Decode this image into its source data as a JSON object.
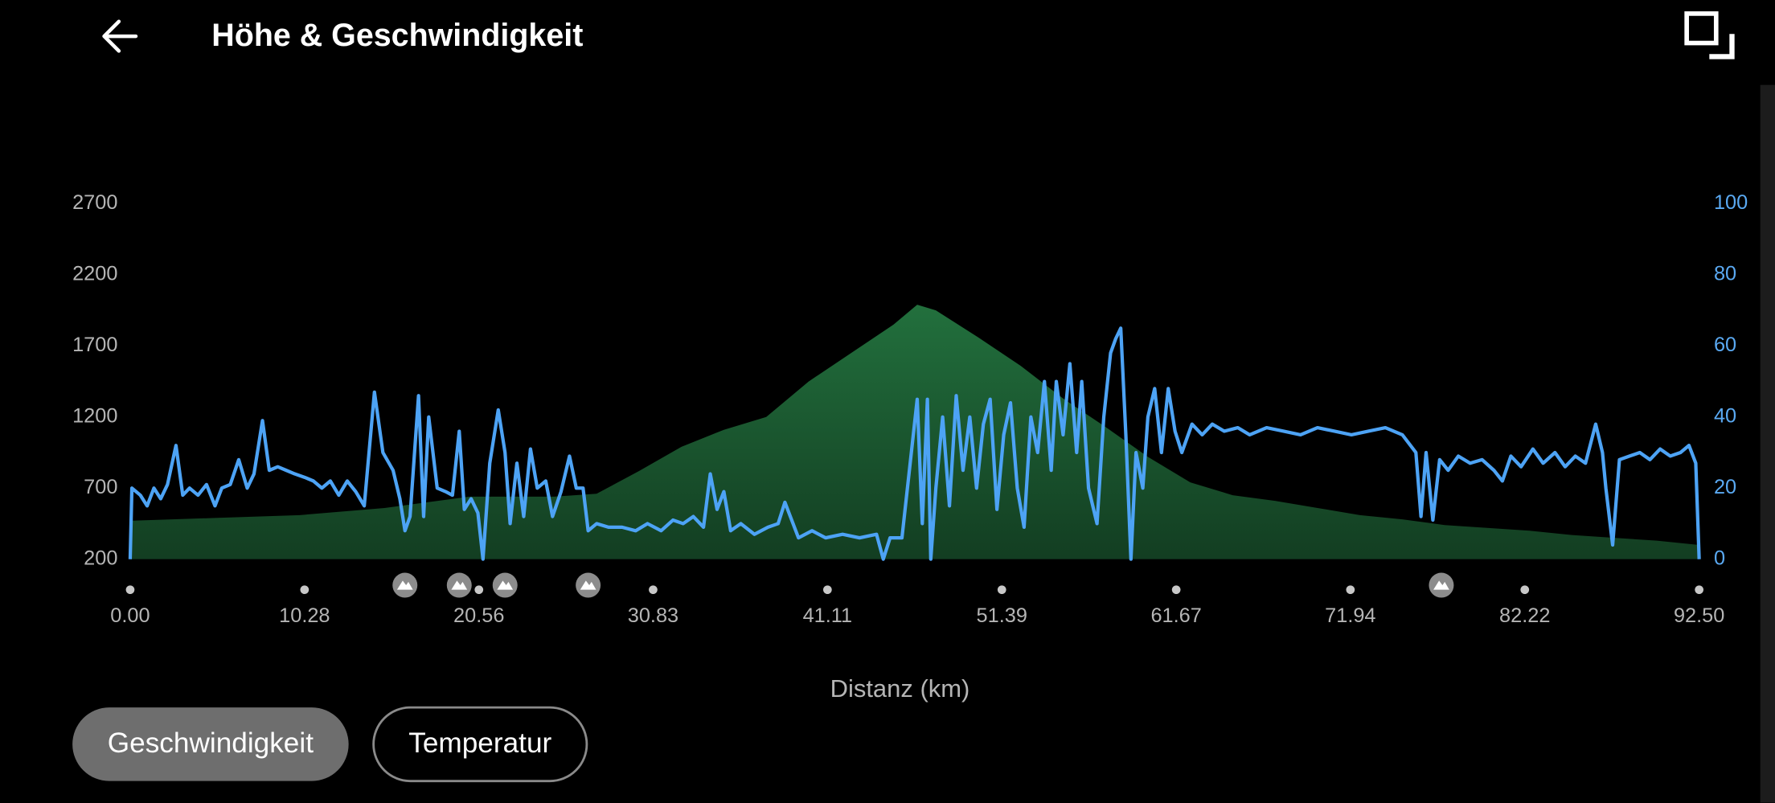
{
  "header": {
    "title": "Höhe & Geschwindigkeit"
  },
  "chart_data": {
    "type": "combo",
    "xlabel": "Distanz (km)",
    "xlim": [
      0,
      92.5
    ],
    "xticks": [
      {
        "value": 0,
        "label": "0.00"
      },
      10.28,
      20.56,
      30.83,
      41.11,
      51.39,
      61.67,
      71.94,
      82.22,
      {
        "value": 92.5,
        "label": "92.50"
      }
    ],
    "ylim": [
      200,
      2700
    ],
    "yticks": [
      200,
      700,
      1200,
      1700,
      2200,
      2700
    ],
    "y2lim": [
      0,
      100
    ],
    "y2ticks": [
      0,
      20,
      40,
      60,
      80,
      100
    ],
    "markers_x": [
      16.2,
      19.4,
      22.1,
      27.0,
      77.3
    ],
    "series": [
      {
        "type": "area",
        "color": "#22703d",
        "x": [
          0,
          5,
          10,
          15,
          20,
          25,
          27.5,
          30,
          32.5,
          35,
          37.5,
          40,
          42.5,
          45,
          46.4,
          47.5,
          50,
          52.5,
          55,
          57.5,
          60,
          62.5,
          65,
          67.5,
          70,
          72.5,
          75,
          77.5,
          80,
          82.5,
          85,
          87.5,
          90,
          92.5
        ],
        "values": [
          470,
          490,
          510,
          560,
          640,
          640,
          660,
          820,
          990,
          1110,
          1200,
          1450,
          1650,
          1850,
          1990,
          1950,
          1760,
          1560,
          1330,
          1130,
          920,
          740,
          650,
          610,
          560,
          510,
          480,
          440,
          420,
          400,
          370,
          350,
          330,
          300
        ]
      },
      {
        "type": "line",
        "axis": "y2",
        "color": "#4da3f5",
        "x": [
          0,
          0.1,
          0.6,
          1.0,
          1.4,
          1.8,
          2.2,
          2.7,
          3.1,
          3.5,
          4.0,
          4.5,
          5.0,
          5.4,
          5.9,
          6.4,
          6.9,
          7.3,
          7.8,
          8.2,
          8.7,
          9.2,
          9.7,
          10.3,
          10.8,
          11.3,
          11.8,
          12.3,
          12.8,
          13.3,
          13.8,
          14.4,
          14.9,
          15.5,
          15.9,
          16.2,
          16.5,
          17.0,
          17.3,
          17.6,
          18.1,
          18.6,
          19.0,
          19.4,
          19.7,
          20.1,
          20.5,
          20.8,
          21.2,
          21.7,
          22.1,
          22.4,
          22.8,
          23.2,
          23.6,
          24.0,
          24.5,
          24.9,
          25.4,
          25.9,
          26.3,
          26.7,
          27.0,
          27.5,
          28.2,
          29,
          29.8,
          30.5,
          31.3,
          32,
          32.6,
          33.2,
          33.8,
          34.2,
          34.6,
          35.0,
          35.4,
          36,
          36.8,
          37.6,
          38.2,
          38.6,
          39.0,
          39.4,
          40.2,
          41,
          42,
          43,
          44,
          44.4,
          44.8,
          45.5,
          46.4,
          46.7,
          47.0,
          47.2,
          47.5,
          47.9,
          48.3,
          48.7,
          49.1,
          49.5,
          49.9,
          50.3,
          50.7,
          51.1,
          51.5,
          51.9,
          52.3,
          52.7,
          53.1,
          53.5,
          53.9,
          54.3,
          54.6,
          55.0,
          55.4,
          55.8,
          56.1,
          56.5,
          57.0,
          57.4,
          57.8,
          58.1,
          58.4,
          58.7,
          59.0,
          59.3,
          59.7,
          60.0,
          60.4,
          60.8,
          61.2,
          61.6,
          62.0,
          62.6,
          63.2,
          63.8,
          64.5,
          65.3,
          66.0,
          67,
          68,
          69,
          70,
          71,
          72,
          73,
          74,
          75,
          75.8,
          76.1,
          76.4,
          76.8,
          77.2,
          77.7,
          78.3,
          79,
          79.7,
          80.4,
          80.9,
          81.4,
          82,
          82.7,
          83.3,
          84,
          84.6,
          85.2,
          85.8,
          86.4,
          86.8,
          87.0,
          87.4,
          87.8,
          88.4,
          89,
          89.6,
          90.2,
          90.8,
          91.4,
          91.9,
          92.3,
          92.5
        ],
        "values": [
          0,
          20,
          18,
          15,
          20,
          17,
          21,
          32,
          18,
          20,
          18,
          21,
          15,
          20,
          21,
          28,
          20,
          24,
          39,
          25,
          26,
          25,
          24,
          23,
          22,
          20,
          22,
          18,
          22,
          19,
          15,
          47,
          30,
          25,
          17,
          8,
          12,
          46,
          12,
          40,
          20,
          19,
          18,
          36,
          14,
          17,
          13,
          0,
          27,
          42,
          30,
          10,
          27,
          12,
          31,
          20,
          22,
          12,
          19,
          29,
          20,
          20,
          8,
          10,
          9,
          9,
          8,
          10,
          8,
          11,
          10,
          12,
          9,
          24,
          14,
          19,
          8,
          10,
          7,
          9,
          10,
          16,
          11,
          6,
          8,
          6,
          7,
          6,
          7,
          0,
          6,
          6,
          45,
          10,
          45,
          0,
          20,
          40,
          15,
          46,
          25,
          40,
          20,
          38,
          45,
          14,
          35,
          44,
          20,
          9,
          40,
          30,
          50,
          25,
          50,
          35,
          55,
          30,
          50,
          20,
          10,
          40,
          58,
          62,
          65,
          35,
          0,
          30,
          20,
          40,
          48,
          30,
          48,
          36,
          30,
          38,
          35,
          38,
          36,
          37,
          35,
          37,
          36,
          35,
          37,
          36,
          35,
          36,
          37,
          35,
          30,
          12,
          30,
          11,
          28,
          25,
          29,
          27,
          28,
          25,
          22,
          29,
          26,
          31,
          27,
          30,
          26,
          29,
          27,
          38,
          30,
          20,
          4,
          28,
          29,
          30,
          28,
          31,
          29,
          30,
          32,
          27,
          0
        ]
      }
    ]
  },
  "toggles": [
    {
      "label": "Geschwindigkeit",
      "active": true
    },
    {
      "label": "Temperatur",
      "active": false
    }
  ]
}
